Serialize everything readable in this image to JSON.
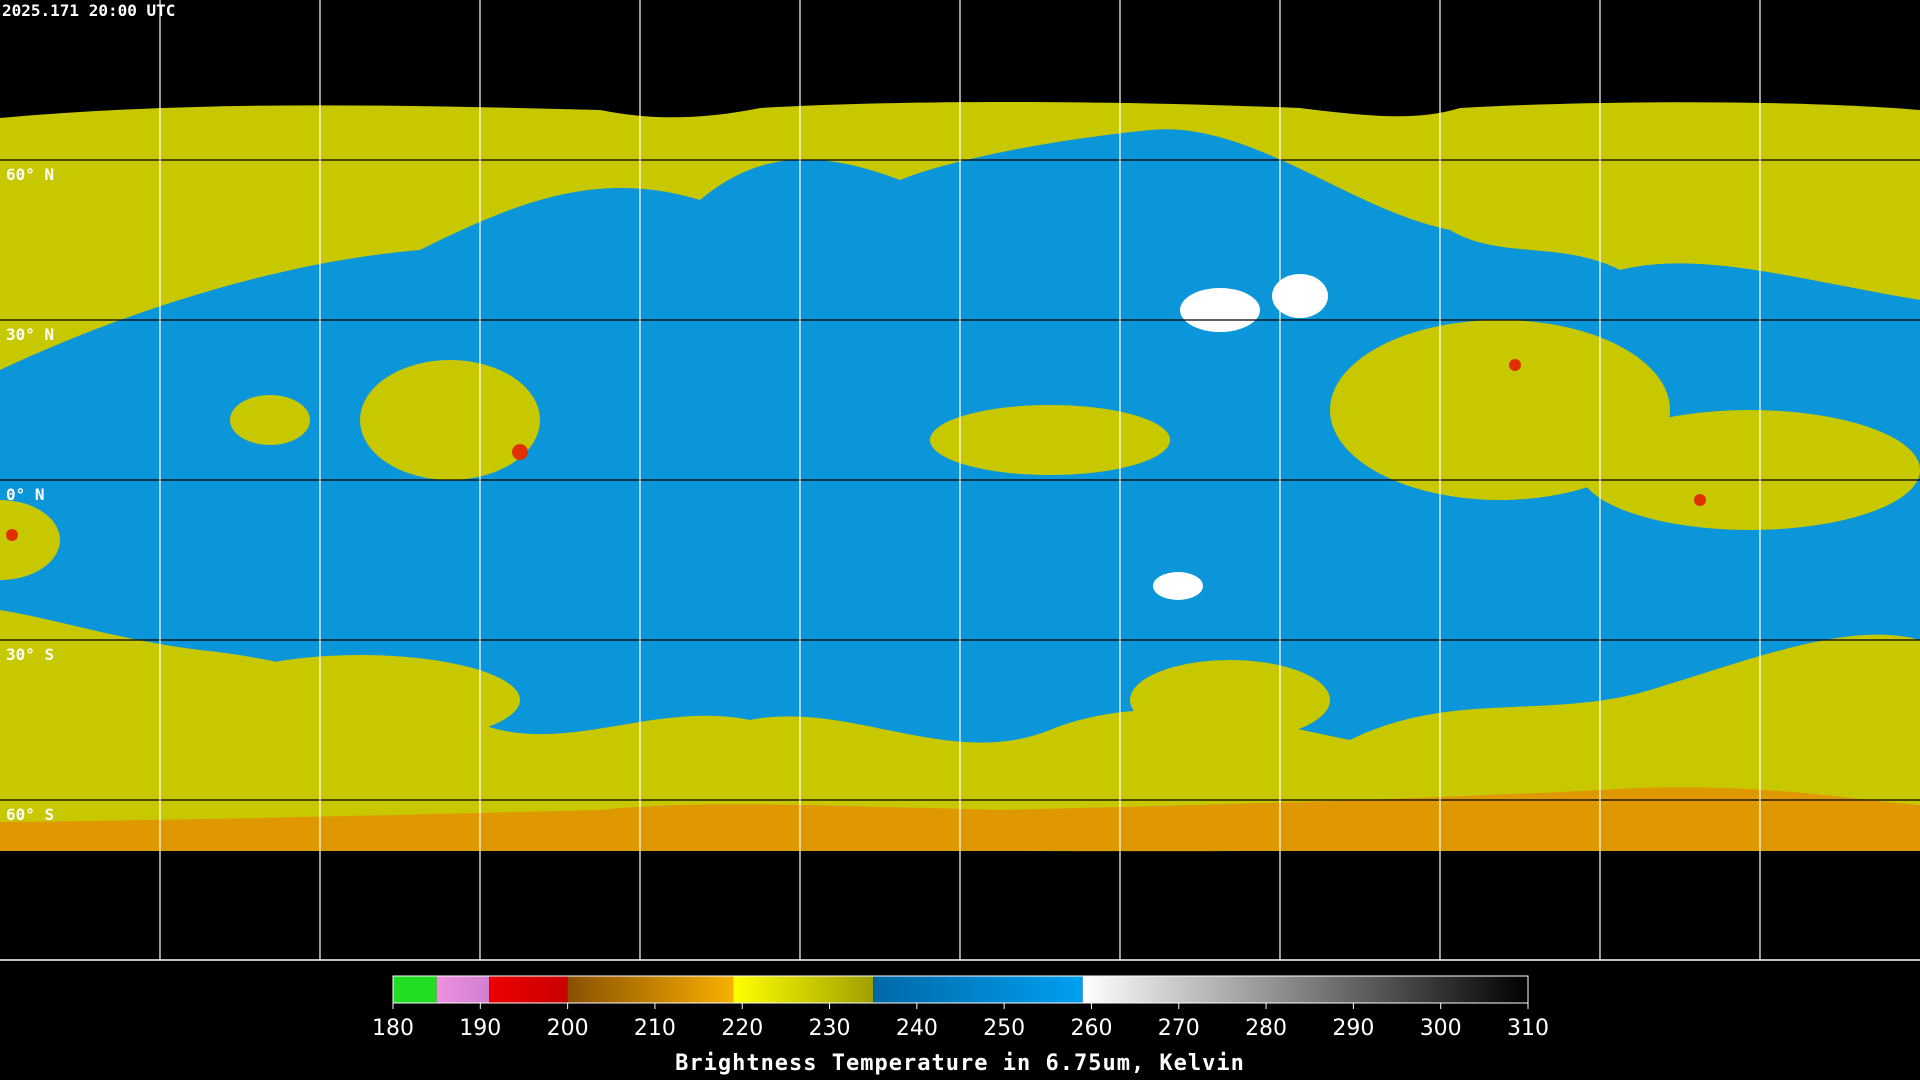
{
  "timestamp": "2025.171 20:00 UTC",
  "latitude_labels": [
    "60° N",
    "30° N",
    "0° N",
    "30° S",
    "60° S"
  ],
  "colorbar": {
    "title": "Brightness Temperature in 6.75um, Kelvin",
    "xlim": [
      180,
      310
    ],
    "xticks": [
      180,
      190,
      200,
      210,
      220,
      230,
      240,
      250,
      260,
      270,
      280,
      290,
      300,
      310
    ],
    "segments": [
      {
        "start": 180,
        "end": 185,
        "colors": [
          "#22dd22",
          "#22dd22"
        ]
      },
      {
        "start": 185,
        "end": 191,
        "colors": [
          "#f090e0",
          "#d080d0"
        ]
      },
      {
        "start": 191,
        "end": 200,
        "colors": [
          "#ee0000",
          "#c80000"
        ]
      },
      {
        "start": 200,
        "end": 219,
        "colors": [
          "#8a5000",
          "#f8b000"
        ]
      },
      {
        "start": 219,
        "end": 235,
        "colors": [
          "#ffff00",
          "#a0a000"
        ]
      },
      {
        "start": 235,
        "end": 259,
        "colors": [
          "#0068a8",
          "#00a0f0"
        ]
      },
      {
        "start": 259,
        "end": 310,
        "colors": [
          "#ffffff",
          "#000000"
        ]
      }
    ]
  }
}
